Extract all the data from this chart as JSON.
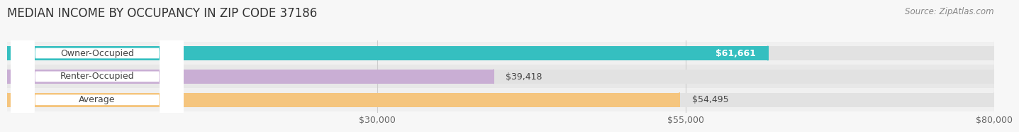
{
  "title": "MEDIAN INCOME BY OCCUPANCY IN ZIP CODE 37186",
  "source": "Source: ZipAtlas.com",
  "categories": [
    "Owner-Occupied",
    "Renter-Occupied",
    "Average"
  ],
  "values": [
    61661,
    39418,
    54495
  ],
  "labels": [
    "$61,661",
    "$39,418",
    "$54,495"
  ],
  "bar_colors": [
    "#35bfc0",
    "#c9aed4",
    "#f5c57e"
  ],
  "bar_bg_color": "#e2e2e2",
  "row_bg_colors": [
    "#efefef",
    "#e8e8e8",
    "#efefef"
  ],
  "xlim_data": [
    0,
    80000
  ],
  "xstart": 0,
  "xticks": [
    30000,
    55000,
    80000
  ],
  "xticklabels": [
    "$30,000",
    "$55,000",
    "$80,000"
  ],
  "title_fontsize": 12,
  "source_fontsize": 8.5,
  "label_fontsize": 9,
  "cat_fontsize": 9,
  "bar_height": 0.62,
  "background_color": "#f7f7f7",
  "stripe_colors": [
    "#f0f0f0",
    "#e8e8e8"
  ]
}
